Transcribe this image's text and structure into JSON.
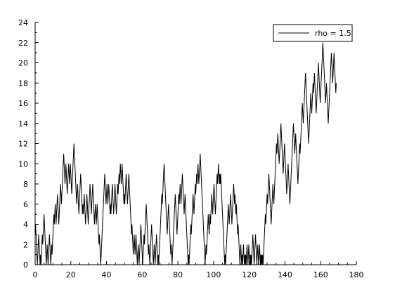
{
  "chart_data": {
    "type": "line",
    "title": "",
    "xlabel": "",
    "ylabel": "",
    "xlim": [
      0,
      180
    ],
    "ylim": [
      0,
      24
    ],
    "xticks": [
      0,
      20,
      40,
      60,
      80,
      100,
      120,
      140,
      160,
      180
    ],
    "yticks": [
      0,
      2,
      4,
      6,
      8,
      10,
      12,
      14,
      16,
      18,
      20,
      22,
      24
    ],
    "grid": false,
    "legend": {
      "position": "top-right",
      "entries": [
        "rho = 1.5"
      ]
    },
    "series": [
      {
        "name": "rho = 1.5",
        "color": "#000000",
        "step": 0.25,
        "x_start": 0,
        "values": [
          3,
          4,
          3,
          2,
          1,
          0,
          1,
          2,
          3,
          2,
          1,
          0,
          1,
          0,
          1,
          2,
          3,
          2,
          3,
          4,
          5,
          4,
          3,
          2,
          1,
          0,
          1,
          2,
          1,
          0,
          1,
          2,
          3,
          2,
          1,
          0,
          1,
          2,
          1,
          2,
          3,
          4,
          5,
          4,
          5,
          6,
          5,
          4,
          5,
          6,
          7,
          6,
          5,
          4,
          5,
          6,
          7,
          8,
          7,
          6,
          7,
          8,
          9,
          10,
          11,
          10,
          9,
          8,
          9,
          10,
          9,
          8,
          7,
          8,
          9,
          10,
          9,
          8,
          9,
          10,
          9,
          8,
          7,
          8,
          9,
          10,
          11,
          12,
          11,
          10,
          9,
          8,
          7,
          6,
          7,
          8,
          7,
          6,
          5,
          6,
          7,
          8,
          9,
          8,
          7,
          6,
          5,
          6,
          5,
          6,
          7,
          6,
          5,
          4,
          5,
          6,
          7,
          6,
          5,
          4,
          5,
          6,
          7,
          8,
          7,
          6,
          5,
          6,
          7,
          8,
          7,
          6,
          5,
          4,
          5,
          6,
          5,
          4,
          5,
          6,
          5,
          4,
          3,
          2,
          3,
          2,
          1,
          0,
          1,
          2,
          3,
          4,
          5,
          6,
          7,
          8,
          9,
          8,
          7,
          6,
          7,
          8,
          7,
          6,
          7,
          8,
          7,
          6,
          5,
          6,
          5,
          6,
          7,
          8,
          7,
          6,
          5,
          6,
          7,
          8,
          7,
          6,
          5,
          6,
          7,
          8,
          7,
          8,
          9,
          8,
          9,
          10,
          9,
          8,
          9,
          10,
          9,
          8,
          7,
          6,
          7,
          6,
          7,
          8,
          9,
          8,
          7,
          6,
          7,
          8,
          9,
          8,
          7,
          6,
          5,
          4,
          3,
          4,
          3,
          2,
          1,
          2,
          3,
          2,
          1,
          2,
          3,
          2,
          1,
          0,
          1,
          2,
          1,
          0,
          1,
          2,
          3,
          4,
          3,
          2,
          1,
          0,
          1,
          2,
          3,
          2,
          3,
          4,
          5,
          6,
          5,
          4,
          3,
          2,
          1,
          2,
          1,
          0,
          1,
          2,
          3,
          4,
          3,
          2,
          1,
          0,
          1,
          2,
          1,
          0,
          1,
          2,
          3,
          2,
          1,
          0,
          1,
          0,
          1,
          2,
          3,
          4,
          5,
          6,
          7,
          6,
          7,
          8,
          9,
          10,
          9,
          8,
          7,
          6,
          5,
          4,
          3,
          4,
          5,
          6,
          5,
          4,
          3,
          2,
          1,
          2,
          1,
          0,
          1,
          2,
          3,
          4,
          5,
          6,
          7,
          6,
          5,
          4,
          3,
          4,
          5,
          6,
          7,
          6,
          7,
          8,
          7,
          6,
          7,
          8,
          9,
          8,
          7,
          6,
          5,
          6,
          7,
          6,
          5,
          4,
          3,
          2,
          1,
          0,
          1,
          0,
          1,
          2,
          3,
          4,
          3,
          4,
          5,
          6,
          7,
          6,
          5,
          6,
          7,
          8,
          7,
          8,
          9,
          8,
          9,
          10,
          9,
          8,
          9,
          10,
          11,
          10,
          9,
          8,
          7,
          6,
          5,
          4,
          3,
          2,
          1,
          0,
          1,
          2,
          1,
          2,
          3,
          4,
          5,
          4,
          3,
          4,
          5,
          4,
          5,
          6,
          7,
          6,
          5,
          6,
          7,
          8,
          7,
          6,
          5,
          6,
          7,
          8,
          9,
          8,
          9,
          10,
          9,
          8,
          9,
          8,
          9,
          8,
          7,
          6,
          5,
          4,
          3,
          2,
          1,
          0,
          1,
          0,
          1,
          2,
          3,
          4,
          5,
          6,
          5,
          4,
          5,
          6,
          7,
          6,
          5,
          4,
          5,
          6,
          7,
          8,
          7,
          6,
          7,
          6,
          5,
          6,
          5,
          4,
          3,
          4,
          3,
          2,
          1,
          0,
          1,
          2,
          1,
          0,
          1,
          0,
          1,
          2,
          1,
          0,
          1,
          0,
          1,
          0,
          1,
          2,
          1,
          0,
          1,
          2,
          1,
          0,
          1,
          0,
          1,
          0,
          1,
          2,
          3,
          2,
          1,
          0,
          1,
          2,
          3,
          2,
          1,
          0,
          1,
          2,
          1,
          0,
          1,
          2,
          1,
          0,
          1,
          0,
          1,
          0,
          1,
          0,
          1,
          2,
          3,
          4,
          5,
          4,
          5,
          6,
          7,
          6,
          7,
          8,
          9,
          8,
          7,
          6,
          5,
          4,
          5,
          6,
          7,
          8,
          7,
          6,
          7,
          8,
          9,
          10,
          11,
          12,
          11,
          12,
          13,
          12,
          11,
          10,
          11,
          12,
          13,
          14,
          13,
          12,
          11,
          10,
          9,
          10,
          11,
          12,
          11,
          10,
          9,
          8,
          7,
          8,
          9,
          10,
          9,
          8,
          7,
          6,
          7,
          8,
          9,
          10,
          11,
          12,
          13,
          14,
          13,
          12,
          11,
          12,
          13,
          12,
          11,
          10,
          9,
          8,
          9,
          10,
          11,
          12,
          11,
          12,
          13,
          14,
          15,
          16,
          15,
          14,
          15,
          16,
          17,
          18,
          19,
          18,
          17,
          16,
          15,
          14,
          13,
          12,
          13,
          14,
          15,
          16,
          17,
          16,
          15,
          16,
          17,
          18,
          17,
          18,
          19,
          18,
          17,
          16,
          15,
          16,
          17,
          18,
          19,
          20,
          19,
          18,
          17,
          16,
          17,
          18,
          19,
          20,
          21,
          22,
          21,
          20,
          19,
          18,
          17,
          16,
          17,
          18,
          17,
          16,
          15,
          14,
          15,
          16,
          17,
          18,
          19,
          20,
          21,
          20,
          19,
          18,
          19,
          20,
          21,
          20,
          19,
          18,
          17,
          18
        ]
      }
    ]
  }
}
